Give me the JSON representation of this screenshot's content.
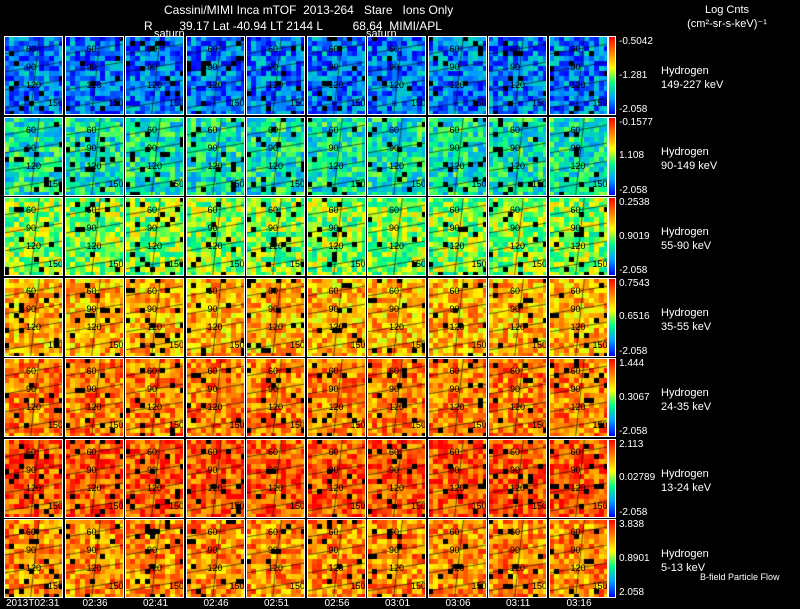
{
  "header": {
    "line1": "Cassini/MIMI Inca mTOF  2013-264   Stare   Ions Only",
    "line2": "R        39.17 Lat -40.94 LT 2144 L         68.64  MIMI/APL",
    "saturn_label": "saturn",
    "units_title": "Log Cnts",
    "units_sub": "(cm²-sr-s-keV)⁻¹"
  },
  "channels": [
    {
      "species": "Hydrogen",
      "energy": "149-227 keV",
      "max": "-0.5042",
      "mid": "-1.281",
      "min": "-2.058",
      "level": 0.15
    },
    {
      "species": "Hydrogen",
      "energy": "90-149 keV",
      "max": "-0.1577",
      "mid": "1.108",
      "min": "-2.058",
      "level": 0.35
    },
    {
      "species": "Hydrogen",
      "energy": "55-90 keV",
      "max": "0.2538",
      "mid": "0.9019",
      "min": "-2.058",
      "level": 0.5
    },
    {
      "species": "Hydrogen",
      "energy": "35-55 keV",
      "max": "0.7543",
      "mid": "0.6516",
      "min": "-2.058",
      "level": 0.72
    },
    {
      "species": "Hydrogen",
      "energy": "24-35 keV",
      "max": "1.444",
      "mid": "0.3067",
      "min": "-2.058",
      "level": 0.8
    },
    {
      "species": "Hydrogen",
      "energy": "13-24 keV",
      "max": "2.113",
      "mid": "0.02789",
      "min": "-2.058",
      "level": 0.87
    },
    {
      "species": "Hydrogen",
      "energy": "5-13 keV",
      "max": "3.838",
      "mid": "0.8901",
      "min": "2.058",
      "level": 0.78
    }
  ],
  "contour_labels": [
    "60",
    "90",
    "120",
    "150"
  ],
  "times": [
    "2013T02:31",
    "02:36",
    "02:41",
    "02:46",
    "02:51",
    "02:56",
    "03:01",
    "03:06",
    "03:11",
    "03:16"
  ],
  "legend": "B-field Particle Flow"
}
